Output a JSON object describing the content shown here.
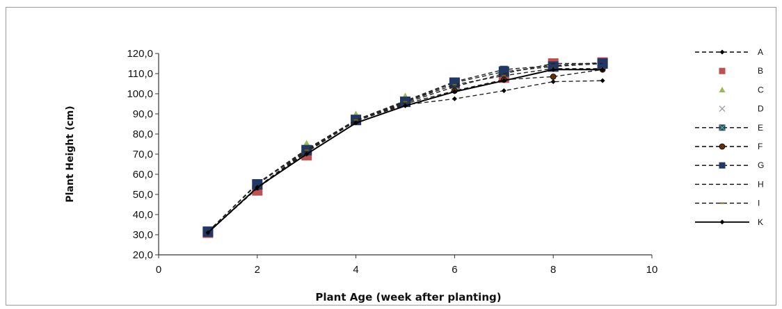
{
  "chart_data": {
    "type": "line",
    "title": "",
    "xlabel": "Plant Age (week after planting)",
    "ylabel": "Plant Height (cm)",
    "xlim": [
      0,
      10
    ],
    "ylim": [
      20,
      120
    ],
    "x_ticks": [
      "0",
      "2",
      "4",
      "6",
      "8",
      "10"
    ],
    "y_ticks": [
      "20,0",
      "30,0",
      "40,0",
      "50,0",
      "60,0",
      "70,0",
      "80,0",
      "90,0",
      "100,0",
      "110,0",
      "120,0"
    ],
    "grid": false,
    "legend_position": "right",
    "x": [
      1,
      2,
      3,
      4,
      5,
      6,
      7,
      8,
      9
    ],
    "series": [
      {
        "name": "A",
        "line": "dashed",
        "marker": "diamond",
        "color": "#000000",
        "values": [
          31.0,
          53.5,
          71.5,
          86.5,
          94.5,
          97.5,
          101.5,
          106.0,
          106.5
        ]
      },
      {
        "name": "B",
        "line": "none",
        "marker": "square",
        "color": "#c0504d",
        "values": [
          31.0,
          52.0,
          69.5,
          87.0,
          96.0,
          105.0,
          108.0,
          115.0,
          115.5
        ]
      },
      {
        "name": "C",
        "line": "none",
        "marker": "triangle",
        "color": "#9bbb59",
        "values": [
          32.0,
          55.0,
          75.0,
          89.5,
          98.5,
          103.5,
          111.0,
          114.0,
          114.0
        ]
      },
      {
        "name": "D",
        "line": "none",
        "marker": "x",
        "color": "#9a9ab0",
        "values": [
          31.5,
          54.5,
          73.0,
          88.0,
          95.5,
          104.0,
          109.0,
          114.5,
          114.5
        ]
      },
      {
        "name": "E",
        "line": "dashed",
        "marker": "square-x",
        "color": "#1f4e5a",
        "values": [
          31.5,
          55.5,
          72.5,
          87.0,
          96.5,
          106.0,
          112.0,
          114.0,
          115.5
        ]
      },
      {
        "name": "F",
        "line": "dashed",
        "marker": "circle",
        "color": "#6b2a00",
        "values": [
          31.0,
          53.5,
          71.0,
          86.5,
          95.0,
          101.5,
          107.0,
          108.5,
          112.0
        ]
      },
      {
        "name": "G",
        "line": "dashed",
        "marker": "square",
        "color": "#1f3864",
        "values": [
          31.5,
          55.0,
          72.0,
          87.0,
          96.0,
          105.5,
          111.0,
          113.5,
          115.0
        ]
      },
      {
        "name": "H",
        "line": "dashed",
        "marker": "none",
        "color": "#000000",
        "values": [
          31.0,
          53.0,
          71.0,
          86.5,
          95.5,
          103.5,
          110.0,
          115.0,
          115.0
        ]
      },
      {
        "name": "I",
        "line": "dashed",
        "marker": "dash",
        "color": "#7f6000",
        "values": [
          31.0,
          53.5,
          72.0,
          87.0,
          96.0,
          104.5,
          109.0,
          112.5,
          112.5
        ]
      },
      {
        "name": "K",
        "line": "solid",
        "marker": "diamond",
        "color": "#000000",
        "values": [
          31.0,
          53.5,
          70.0,
          85.5,
          94.0,
          101.0,
          106.5,
          112.0,
          112.0
        ]
      }
    ]
  }
}
